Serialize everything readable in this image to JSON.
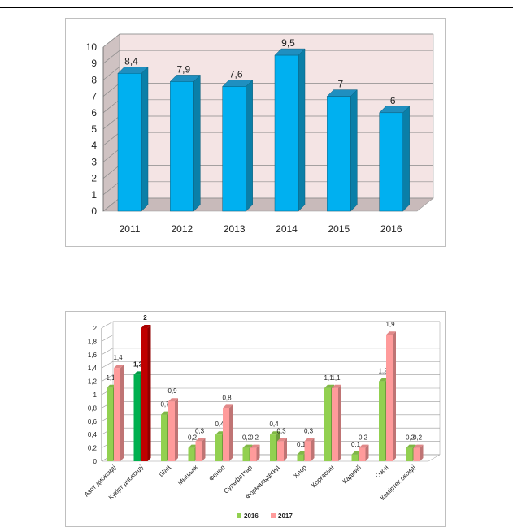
{
  "chart_data": [
    {
      "type": "bar",
      "categories": [
        "2011",
        "2012",
        "2013",
        "2014",
        "2015",
        "2016"
      ],
      "values": [
        8.4,
        7.9,
        7.6,
        9.5,
        7,
        6
      ],
      "value_labels": [
        "8,4",
        "7,9",
        "7,6",
        "9,5",
        "7",
        "6"
      ],
      "yticks": [
        "0",
        "1",
        "2",
        "3",
        "4",
        "5",
        "6",
        "7",
        "8",
        "9",
        "10"
      ],
      "ylim": [
        0,
        10
      ],
      "grid": true,
      "colors": {
        "bar_front": "#00b0f0",
        "bar_side": "#0a7fa8",
        "bar_top": "#1f8fc0",
        "wall": "#f4e4e4",
        "floor": "#c8baba"
      }
    },
    {
      "type": "bar",
      "categories": [
        "Азот диоксиді",
        "Күкірт диоксиді",
        "Шаң",
        "Мышьяк",
        "Фенол",
        "Сульфаттар",
        "Формальдегид",
        "Хлор",
        "Қорғасын",
        "Кадмий",
        "Озон",
        "Көміртек оксиді"
      ],
      "series": [
        {
          "name": "2016",
          "values": [
            1.1,
            1.3,
            0.7,
            0.2,
            0.4,
            0.2,
            0.4,
            0.1,
            1.1,
            0.1,
            1.2,
            0.2
          ],
          "value_labels": [
            "1,1",
            "1,3",
            "0,7",
            "0,2",
            "0,4",
            "0,2",
            "0,4",
            "0,1",
            "1,1",
            "0,1",
            "1,2",
            "0,2"
          ]
        },
        {
          "name": "2017",
          "values": [
            1.4,
            2,
            0.9,
            0.3,
            0.8,
            0.2,
            0.3,
            0.3,
            1.1,
            0.2,
            1.9,
            0.2
          ],
          "value_labels": [
            "1,4",
            "2",
            "0,9",
            "0,3",
            "0,8",
            "0,2",
            "0,3",
            "0,3",
            "1,1",
            "0,2",
            "1,9",
            "0,2"
          ]
        }
      ],
      "yticks": [
        "0",
        "0,2",
        "0,4",
        "0,6",
        "0,8",
        "1",
        "1,2",
        "1,4",
        "1,6",
        "1,8",
        "2"
      ],
      "ylim": [
        0,
        2
      ],
      "grid": true,
      "legend_position": "bottom",
      "highlight_category": "Күкірт диоксиді",
      "colors": {
        "series_2016": "#92d050",
        "series_2017": "#ff9b9b",
        "highlight_2016": "#00b050",
        "highlight_2017": "#c00000"
      }
    }
  ]
}
